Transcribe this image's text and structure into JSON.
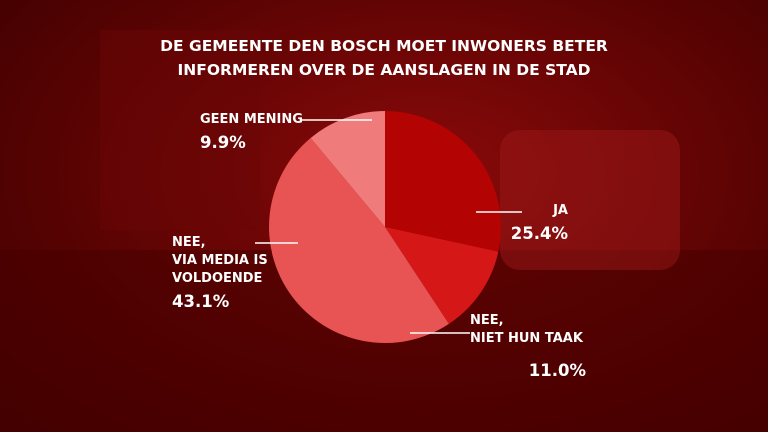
{
  "chart_data": {
    "type": "pie",
    "title": "DE GEMEENTE DEN BOSCH MOET INWONERS BETER\nINFORMEREN OVER DE AANSLAGEN IN DE STAD",
    "categories": [
      "JA",
      "NEE,\nNIET HUN TAAK",
      "NEE,\nVIA MEDIA IS\nVOLDOENDE",
      "GEEN MENING"
    ],
    "values": [
      25.4,
      11.0,
      43.1,
      9.9
    ],
    "value_labels": [
      "25.4%",
      "11.0%",
      "43.1%",
      "9.9%"
    ],
    "colors": [
      "#b30303",
      "#d51717",
      "#e85454",
      "#f07b7b"
    ]
  }
}
